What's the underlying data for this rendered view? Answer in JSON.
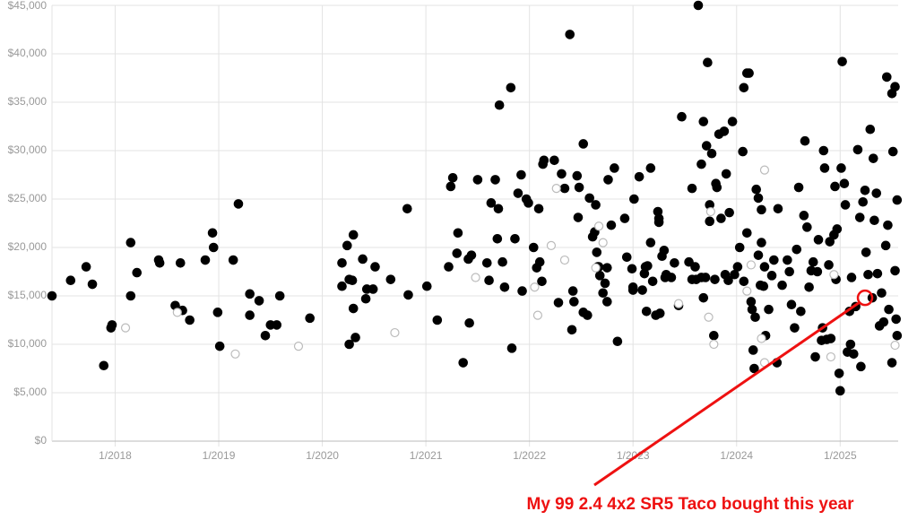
{
  "chart_data": {
    "type": "scatter",
    "xlim": [
      2017.39,
      2025.56
    ],
    "ylim": [
      0,
      45000
    ],
    "xticks": [
      {
        "value": 2018,
        "label": "1/2018"
      },
      {
        "value": 2019,
        "label": "1/2019"
      },
      {
        "value": 2020,
        "label": "1/2020"
      },
      {
        "value": 2021,
        "label": "1/2021"
      },
      {
        "value": 2022,
        "label": "1/2022"
      },
      {
        "value": 2023,
        "label": "1/2023"
      },
      {
        "value": 2024,
        "label": "1/2024"
      },
      {
        "value": 2025,
        "label": "1/2025"
      }
    ],
    "yticks": [
      {
        "value": 0,
        "label": "$0"
      },
      {
        "value": 5000,
        "label": "$5,000"
      },
      {
        "value": 10000,
        "label": "$10,000"
      },
      {
        "value": 15000,
        "label": "$15,000"
      },
      {
        "value": 20000,
        "label": "$20,000"
      },
      {
        "value": 25000,
        "label": "$25,000"
      },
      {
        "value": 30000,
        "label": "$30,000"
      },
      {
        "value": 35000,
        "label": "$35,000"
      },
      {
        "value": 40000,
        "label": "$40,000"
      },
      {
        "value": 45000,
        "label": "$45,000"
      }
    ],
    "grid": true,
    "series": [
      {
        "color": "#000000",
        "marker": "filled",
        "x": [
          2017.39,
          2017.57,
          2017.72,
          2017.78,
          2017.89,
          2017.96,
          2017.97,
          2018.15,
          2018.15,
          2018.21,
          2018.42,
          2018.43,
          2018.58,
          2018.63,
          2018.65,
          2018.72,
          2018.87,
          2018.94,
          2018.95,
          2018.99,
          2019.01,
          2019.14,
          2019.19,
          2019.3,
          2019.3,
          2019.39,
          2019.45,
          2019.5,
          2019.56,
          2019.59,
          2019.88,
          2020.19,
          2020.19,
          2020.24,
          2020.26,
          2020.26,
          2020.29,
          2020.3,
          2020.3,
          2020.32,
          2020.39,
          2020.42,
          2020.43,
          2020.49,
          2020.51,
          2020.66,
          2020.82,
          2020.83,
          2021.01,
          2021.11,
          2021.22,
          2021.24,
          2021.26,
          2021.3,
          2021.31,
          2021.36,
          2021.41,
          2021.42,
          2021.44,
          2021.5,
          2021.59,
          2021.61,
          2021.63,
          2021.67,
          2021.69,
          2021.7,
          2021.71,
          2021.74,
          2021.76,
          2021.82,
          2021.83,
          2021.86,
          2021.89,
          2021.92,
          2021.93,
          2021.97,
          2021.99,
          2022.04,
          2022.07,
          2022.09,
          2022.1,
          2022.12,
          2022.13,
          2022.14,
          2022.24,
          2022.28,
          2022.31,
          2022.34,
          2022.39,
          2022.41,
          2022.42,
          2022.43,
          2022.46,
          2022.47,
          2022.48,
          2022.52,
          2022.52,
          2022.56,
          2022.58,
          2022.63,
          2022.64,
          2022.61,
          2022.65,
          2022.66,
          2022.67,
          2022.68,
          2022.71,
          2022.73,
          2022.75,
          2022.75,
          2022.76,
          2022.79,
          2022.82,
          2022.85,
          2022.92,
          2022.94,
          2022.99,
          2023.0,
          2023.0,
          2023.01,
          2023.06,
          2023.09,
          2023.11,
          2023.12,
          2023.13,
          2023.14,
          2023.17,
          2023.17,
          2023.19,
          2023.22,
          2023.24,
          2023.25,
          2023.25,
          2023.26,
          2023.28,
          2023.3,
          2023.31,
          2023.32,
          2023.37,
          2023.4,
          2023.44,
          2023.47,
          2023.54,
          2023.57,
          2023.57,
          2023.6,
          2023.61,
          2023.63,
          2023.66,
          2023.66,
          2023.68,
          2023.68,
          2023.7,
          2023.71,
          2023.72,
          2023.74,
          2023.74,
          2023.76,
          2023.78,
          2023.79,
          2023.8,
          2023.81,
          2023.83,
          2023.85,
          2023.88,
          2023.89,
          2023.9,
          2023.92,
          2023.93,
          2023.96,
          2023.98,
          2024.01,
          2024.03,
          2024.06,
          2024.07,
          2024.07,
          2024.1,
          2024.1,
          2024.12,
          2024.14,
          2024.15,
          2024.16,
          2024.17,
          2024.18,
          2024.19,
          2024.21,
          2024.21,
          2024.23,
          2024.24,
          2024.24,
          2024.26,
          2024.27,
          2024.28,
          2024.31,
          2024.34,
          2024.36,
          2024.39,
          2024.4,
          2024.44,
          2024.49,
          2024.51,
          2024.53,
          2024.56,
          2024.58,
          2024.6,
          2024.62,
          2024.65,
          2024.66,
          2024.68,
          2024.7,
          2024.72,
          2024.74,
          2024.76,
          2024.78,
          2024.79,
          2024.82,
          2024.83,
          2024.84,
          2024.85,
          2024.87,
          2024.89,
          2024.9,
          2024.91,
          2024.94,
          2024.95,
          2024.96,
          2024.97,
          2024.99,
          2025.0,
          2025.01,
          2025.02,
          2025.04,
          2025.05,
          2025.07,
          2025.09,
          2025.1,
          2025.11,
          2025.13,
          2025.15,
          2025.17,
          2025.19,
          2025.2,
          2025.22,
          2025.24,
          2025.25,
          2025.27,
          2025.29,
          2025.31,
          2025.32,
          2025.33,
          2025.35,
          2025.36,
          2025.38,
          2025.4,
          2025.42,
          2025.44,
          2025.45,
          2025.46,
          2025.47,
          2025.5,
          2025.5,
          2025.51,
          2025.53,
          2025.53,
          2025.54,
          2025.55,
          2025.55
        ],
        "values": [
          15000,
          16600,
          18000,
          16200,
          7800,
          11700,
          12000,
          20500,
          15000,
          17400,
          18700,
          18400,
          14000,
          18400,
          13500,
          12500,
          18700,
          21500,
          20000,
          13300,
          9800,
          18700,
          24500,
          15200,
          13000,
          14500,
          10900,
          12000,
          12000,
          15000,
          12700,
          16000,
          18400,
          20200,
          10000,
          16700,
          16600,
          21300,
          13700,
          10700,
          18800,
          14700,
          15700,
          15700,
          18000,
          16700,
          24000,
          15100,
          16000,
          12500,
          18000,
          26300,
          27200,
          19400,
          21500,
          8100,
          18800,
          12200,
          19200,
          27000,
          18400,
          16600,
          24600,
          27000,
          20900,
          24000,
          34700,
          18500,
          15900,
          36500,
          9600,
          20900,
          25600,
          27500,
          15500,
          25000,
          24600,
          20000,
          17900,
          24000,
          18500,
          16500,
          28600,
          29000,
          29000,
          14300,
          27600,
          26100,
          42000,
          11500,
          15500,
          14400,
          27400,
          23100,
          26200,
          13300,
          30700,
          13000,
          25100,
          21600,
          24400,
          21100,
          19500,
          18000,
          18000,
          17100,
          15300,
          16300,
          14400,
          17900,
          27000,
          22300,
          28200,
          10300,
          23000,
          19000,
          17800,
          15900,
          15600,
          25000,
          27300,
          15600,
          17300,
          18000,
          13400,
          18100,
          28200,
          20500,
          16500,
          13000,
          23700,
          23000,
          22600,
          13200,
          19100,
          19700,
          16900,
          17200,
          16900,
          18400,
          14000,
          33500,
          18500,
          26100,
          16700,
          18000,
          16700,
          45000,
          16900,
          28600,
          14800,
          33000,
          16900,
          30500,
          39100,
          22700,
          24400,
          29700,
          10900,
          16700,
          26600,
          26200,
          31700,
          23000,
          32000,
          17200,
          27600,
          16600,
          23600,
          33000,
          17200,
          18000,
          20000,
          29900,
          16500,
          36500,
          21500,
          38000,
          38000,
          14400,
          13600,
          9400,
          7500,
          12800,
          26000,
          19200,
          25100,
          16100,
          23900,
          20500,
          16000,
          18000,
          10900,
          13600,
          17100,
          18700,
          8100,
          24000,
          16100,
          18700,
          17500,
          14100,
          11700,
          19800,
          26200,
          13400,
          23300,
          31000,
          22100,
          15900,
          17600,
          18500,
          8700,
          17500,
          20800,
          10400,
          11700,
          30000,
          28200,
          10500,
          18200,
          20600,
          10600,
          21300,
          26300,
          16700,
          21900,
          7000,
          5200,
          28200,
          39200,
          26600,
          24400,
          9200,
          13400,
          10000,
          16900,
          9000,
          13900,
          30100,
          23100,
          7700,
          24700,
          25900,
          19500,
          17200,
          32200,
          14800,
          29200,
          22800,
          25600,
          17300,
          11900,
          15300,
          12300,
          20200,
          37600,
          22300,
          13600,
          8100,
          35900,
          29900,
          17600,
          36600,
          12600,
          24900,
          10900
        ]
      },
      {
        "color": "#bbbbbb",
        "marker": "hollow",
        "x": [
          2018.1,
          2018.6,
          2019.16,
          2019.77,
          2020.7,
          2021.48,
          2022.05,
          2022.08,
          2022.21,
          2022.26,
          2022.34,
          2022.64,
          2022.67,
          2022.71,
          2023.44,
          2023.73,
          2023.75,
          2023.78,
          2024.1,
          2024.14,
          2024.24,
          2024.27,
          2024.27,
          2024.91,
          2024.94,
          2025.53
        ],
        "values": [
          11700,
          13300,
          9000,
          9800,
          11200,
          16900,
          15900,
          13000,
          20200,
          26100,
          18700,
          17900,
          22200,
          20500,
          14200,
          12800,
          23700,
          10000,
          15500,
          18200,
          10600,
          28000,
          8100,
          8700,
          17200,
          9900
        ]
      }
    ],
    "annotation": {
      "text": "My 99 2.4 4x2 SR5 Taco bought this year",
      "x": 2025.24,
      "y": 14800,
      "color": "#ee1111"
    }
  }
}
